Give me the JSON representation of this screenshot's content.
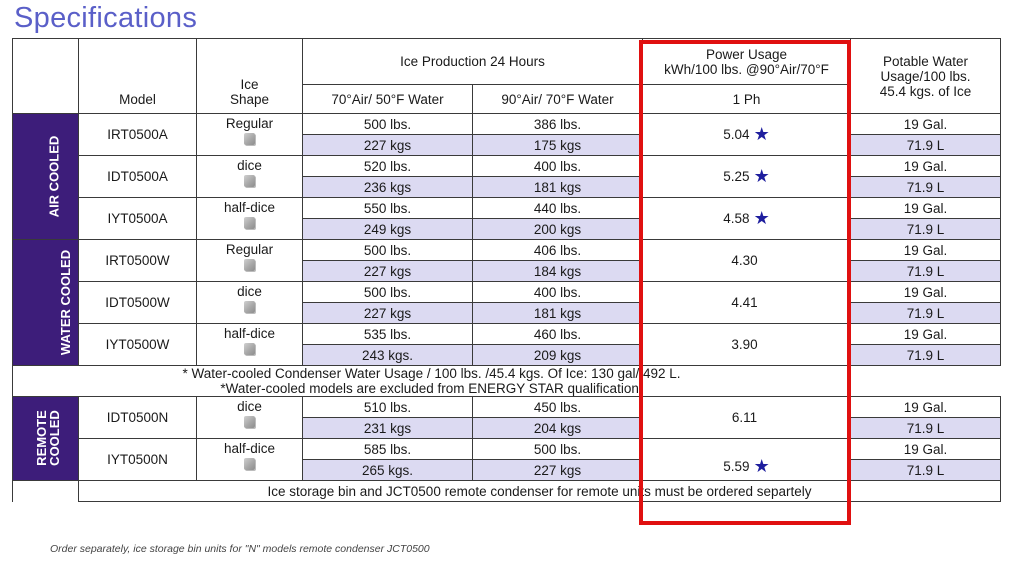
{
  "page": {
    "title": "Specifications",
    "order_note": "Order separately, ice storage bin units for \"N\" models remote condenser JCT0500"
  },
  "header": {
    "model": "Model",
    "ice_shape": "Ice\nShape",
    "production": "Ice Production 24 Hours",
    "col_70": "70°Air/ 50°F Water",
    "col_90": "90°Air/ 70°F Water",
    "power_usage": "Power Usage\nkWh/100 lbs. @90°Air/70°F",
    "phase": "1 Ph",
    "water": "Potable Water\nUsage/100 lbs.\n45.4 kgs. of Ice"
  },
  "groups": [
    {
      "label": "AIR COOLED",
      "rows": [
        {
          "model": "IRT0500A",
          "shape": "Regular",
          "p70_lbs": "500 lbs.",
          "p70_kgs": "227 kgs",
          "p90_lbs": "386 lbs.",
          "p90_kgs": "175 kgs",
          "power": "5.04",
          "star": "★",
          "water_gal": "19 Gal.",
          "water_l": "71.9 L"
        },
        {
          "model": "IDT0500A",
          "shape": "dice",
          "p70_lbs": "520 lbs.",
          "p70_kgs": "236 kgs",
          "p90_lbs": "400 lbs.",
          "p90_kgs": "181 kgs",
          "power": "5.25",
          "star": "★",
          "water_gal": "19 Gal.",
          "water_l": "71.9 L"
        },
        {
          "model": "IYT0500A",
          "shape": "half-dice",
          "p70_lbs": "550 lbs.",
          "p70_kgs": "249 kgs",
          "p90_lbs": "440 lbs.",
          "p90_kgs": "200 kgs",
          "power": "4.58",
          "star": "★",
          "water_gal": "19 Gal.",
          "water_l": "71.9 L"
        }
      ]
    },
    {
      "label": "WATER COOLED",
      "rows": [
        {
          "model": "IRT0500W",
          "shape": "Regular",
          "p70_lbs": "500 lbs.",
          "p70_kgs": "227 kgs",
          "p90_lbs": "406 lbs.",
          "p90_kgs": "184 kgs",
          "power": "4.30",
          "star": "",
          "water_gal": "19 Gal.",
          "water_l": "71.9 L"
        },
        {
          "model": "IDT0500W",
          "shape": "dice",
          "p70_lbs": "500 lbs.",
          "p70_kgs": "227 kgs",
          "p90_lbs": "400 lbs.",
          "p90_kgs": "181 kgs",
          "power": "4.41",
          "star": "",
          "water_gal": "19 Gal.",
          "water_l": "71.9 L"
        },
        {
          "model": "IYT0500W",
          "shape": "half-dice",
          "p70_lbs": "535 lbs.",
          "p70_kgs": "243 kgs.",
          "p90_lbs": "460 lbs.",
          "p90_kgs": "209 kgs",
          "power": "3.90",
          "star": "",
          "water_gal": "19 Gal.",
          "water_l": "71.9 L"
        }
      ]
    },
    {
      "label": "REMOTE COOLED",
      "rows": [
        {
          "model": "IDT0500N",
          "shape": "dice",
          "p70_lbs": "510 lbs.",
          "p70_kgs": "231 kgs",
          "p90_lbs": "450 lbs.",
          "p90_kgs": "204 kgs",
          "power": "6.11",
          "star": "",
          "water_gal": "19 Gal.",
          "water_l": "71.9 L"
        },
        {
          "model": "IYT0500N",
          "shape": "half-dice",
          "p70_lbs": "585 lbs.",
          "p70_kgs": "265 kgs.",
          "p90_lbs": "500 lbs.",
          "p90_kgs": "227 kgs",
          "power": "5.59",
          "star": "★",
          "water_gal": "19 Gal.",
          "water_l": "71.9 L"
        }
      ]
    }
  ],
  "notes": {
    "water_usage": "* Water-cooled Condenser Water Usage / 100 lbs. /45.4 kgs. Of Ice: 130 gal/ 492 L.",
    "energy_star": "*Water-cooled models are excluded from ENERGY STAR qualification.",
    "remote": "Ice storage bin and JCT0500 remote condenser for remote units must be ordered separtely"
  },
  "colors": {
    "title": "#5a5fc8",
    "side_band": "#3d1d7a",
    "alt_row": "#dcdaf2",
    "highlight_box": "#e01010",
    "star": "#1e1e9e"
  },
  "icons": {
    "ice_shape": "ice-cube-icon",
    "energy_star": "star-icon"
  }
}
